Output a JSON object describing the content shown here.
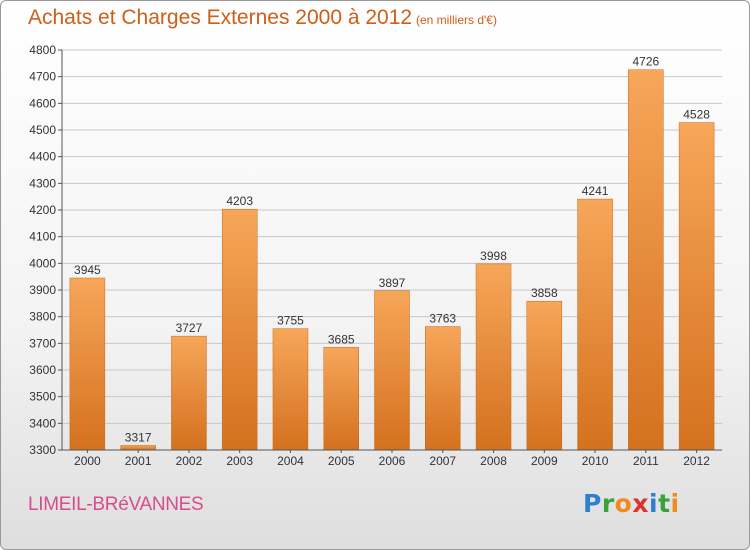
{
  "title": "Achats et Charges Externes 2000 à 2012",
  "subtitle": "(en milliers d'€)",
  "commune": "LIMEIL-BRéVANNES",
  "logo": {
    "letters": [
      {
        "char": "P",
        "color": "#2e7fd0"
      },
      {
        "char": "r",
        "color": "#39a23a"
      },
      {
        "char": "o",
        "color": "#f08a1c"
      },
      {
        "char": "x",
        "color": "#d9342b"
      },
      {
        "char": "i",
        "color": "#2e7fd0"
      },
      {
        "char": "t",
        "color": "#39a23a"
      },
      {
        "char": "i",
        "color": "#f08a1c"
      }
    ]
  },
  "chart_data": {
    "type": "bar",
    "categories": [
      "2000",
      "2001",
      "2002",
      "2003",
      "2004",
      "2005",
      "2006",
      "2007",
      "2008",
      "2009",
      "2010",
      "2011",
      "2012"
    ],
    "values": [
      3945,
      3317,
      3727,
      4203,
      3755,
      3685,
      3897,
      3763,
      3998,
      3858,
      4241,
      4726,
      4528
    ],
    "yticks": [
      3300,
      3400,
      3500,
      3600,
      3700,
      3800,
      3900,
      4000,
      4100,
      4200,
      4300,
      4400,
      4500,
      4600,
      4700,
      4800
    ],
    "ylim": [
      3300,
      4800
    ],
    "grid": true,
    "bar_color_top": "#f7a65a",
    "bar_color_bottom": "#d4711e",
    "grid_color": "#c8c8c8",
    "title_color": "#cf5e18"
  }
}
